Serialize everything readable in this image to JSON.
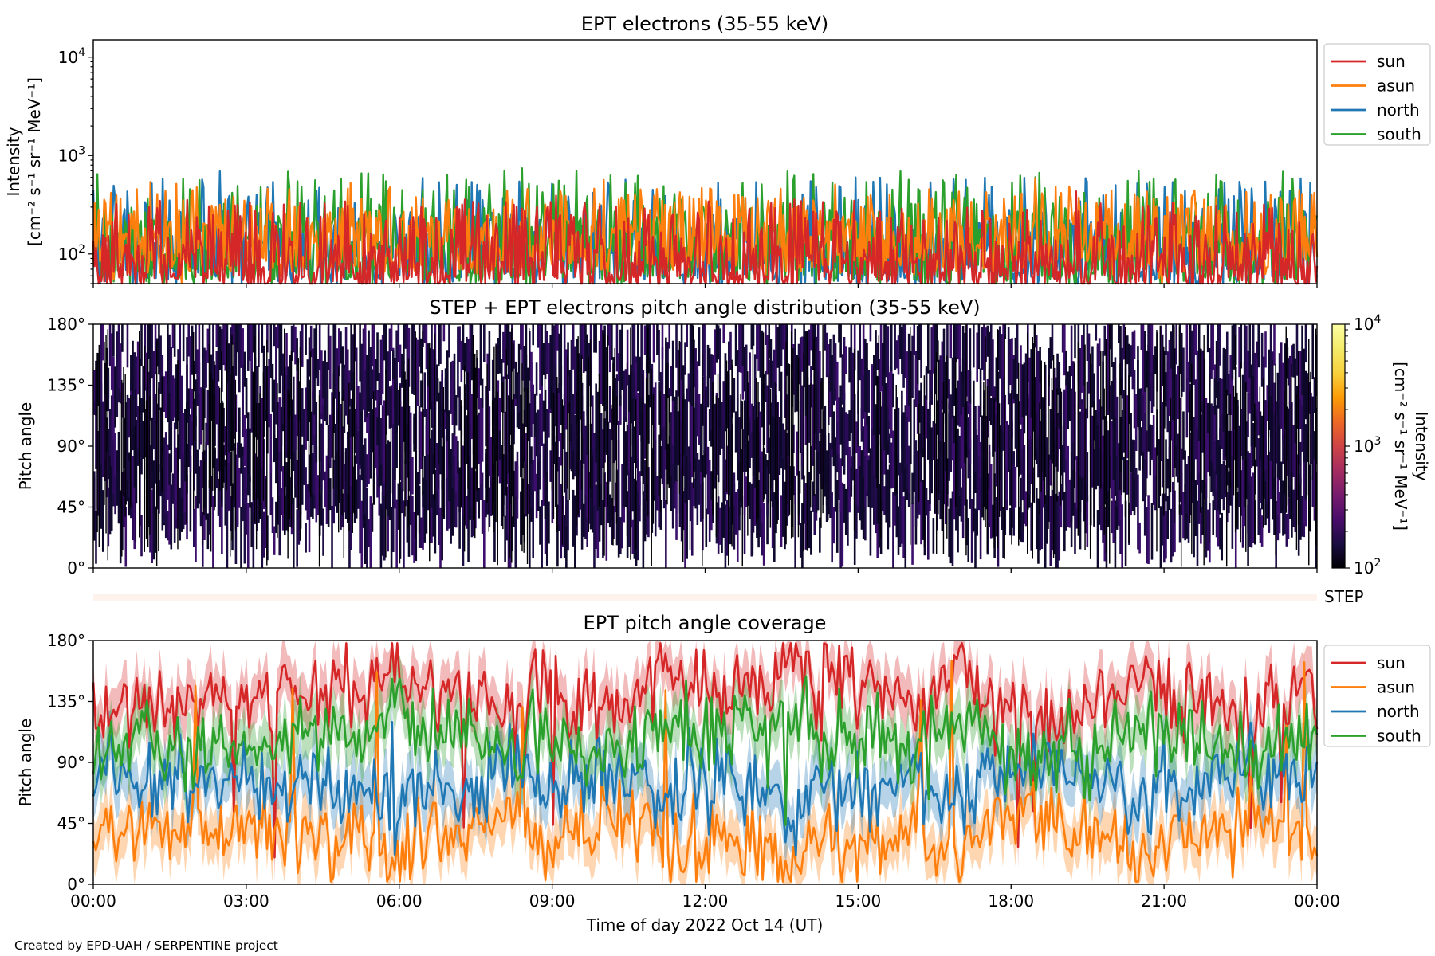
{
  "footer": "Created by EPD-UAH / SERPENTINE project",
  "x_axis": {
    "label": "Time of day 2022 Oct 14 (UT)",
    "ticks": [
      "00:00",
      "03:00",
      "06:00",
      "09:00",
      "12:00",
      "15:00",
      "18:00",
      "21:00",
      "00:00"
    ],
    "range_hours": [
      0,
      24
    ]
  },
  "colors": {
    "sun": "#d62728",
    "asun": "#ff7f0e",
    "north": "#1f77b4",
    "south": "#2ca02c",
    "step_band": "#fdf2ec"
  },
  "panels": {
    "intensity": {
      "title": "EPT electrons (35-55 keV)",
      "ylabel_line1": "Intensity",
      "ylabel_line2": "[cm⁻² s⁻¹ sr⁻¹ MeV⁻¹]",
      "yticks": [
        {
          "base": "10",
          "exp": "2",
          "value": 100
        },
        {
          "base": "10",
          "exp": "3",
          "value": 1000
        },
        {
          "base": "10",
          "exp": "4",
          "value": 10000
        }
      ],
      "legend": [
        "sun",
        "asun",
        "north",
        "south"
      ]
    },
    "pad": {
      "title": "STEP + EPT electrons pitch angle distribution (35-55 keV)",
      "ylabel": "Pitch angle",
      "yticks": [
        "0°",
        "45°",
        "90°",
        "135°",
        "180°"
      ],
      "colorbar": {
        "label_line1": "Intensity",
        "label_line2": "[cm⁻² s⁻¹ sr⁻¹ MeV⁻¹]",
        "ticks": [
          {
            "base": "10",
            "exp": "2",
            "value": 100
          },
          {
            "base": "10",
            "exp": "3",
            "value": 1000
          },
          {
            "base": "10",
            "exp": "4",
            "value": 10000
          }
        ],
        "colormap": "inferno",
        "scale": "log",
        "range": [
          100,
          10000
        ]
      }
    },
    "step_strip": {
      "label": "STEP"
    },
    "coverage": {
      "title": "EPT pitch angle coverage",
      "ylabel": "Pitch angle",
      "yticks": [
        "0°",
        "45°",
        "90°",
        "135°",
        "180°"
      ],
      "legend": [
        "sun",
        "asun",
        "north",
        "south"
      ]
    }
  },
  "chart_data": [
    {
      "type": "line",
      "title": "EPT electrons (35-55 keV)",
      "xlabel": "Time of day 2022 Oct 14 (UT)",
      "ylabel": "Intensity [cm⁻² s⁻¹ sr⁻¹ MeV⁻¹]",
      "yscale": "log",
      "xlim": [
        0,
        24
      ],
      "ylim": [
        50,
        15000
      ],
      "legend_position": "outside-right-top",
      "series": [
        {
          "name": "sun",
          "color": "#d62728",
          "typical_min": 55,
          "typical_max": 300,
          "typical_level": 100
        },
        {
          "name": "asun",
          "color": "#ff7f0e",
          "typical_min": 80,
          "typical_max": 400,
          "typical_level": 180
        },
        {
          "name": "north",
          "color": "#1f77b4",
          "typical_min": 60,
          "typical_max": 500,
          "typical_level": 150
        },
        {
          "name": "south",
          "color": "#2ca02c",
          "typical_min": 60,
          "typical_max": 600,
          "typical_level": 160
        }
      ]
    },
    {
      "type": "heatmap",
      "title": "STEP + EPT electrons pitch angle distribution (35-55 keV)",
      "ylabel": "Pitch angle",
      "xlim": [
        0,
        24
      ],
      "ylim": [
        0,
        180
      ],
      "colorbar_range": [
        100,
        10000
      ],
      "typical_intensity": 150
    },
    {
      "type": "line",
      "title": "EPT pitch angle coverage",
      "xlabel": "Time of day 2022 Oct 14 (UT)",
      "ylabel": "Pitch angle",
      "xlim": [
        0,
        24
      ],
      "ylim": [
        0,
        180
      ],
      "legend_position": "outside-right-top",
      "series": [
        {
          "name": "sun",
          "color": "#d62728",
          "typical_mean": 140,
          "band_halfwidth": 15
        },
        {
          "name": "asun",
          "color": "#ff7f0e",
          "typical_mean": 35,
          "band_halfwidth": 15
        },
        {
          "name": "north",
          "color": "#1f77b4",
          "typical_mean": 72,
          "band_halfwidth": 15
        },
        {
          "name": "south",
          "color": "#2ca02c",
          "typical_mean": 108,
          "band_halfwidth": 15
        }
      ]
    }
  ]
}
